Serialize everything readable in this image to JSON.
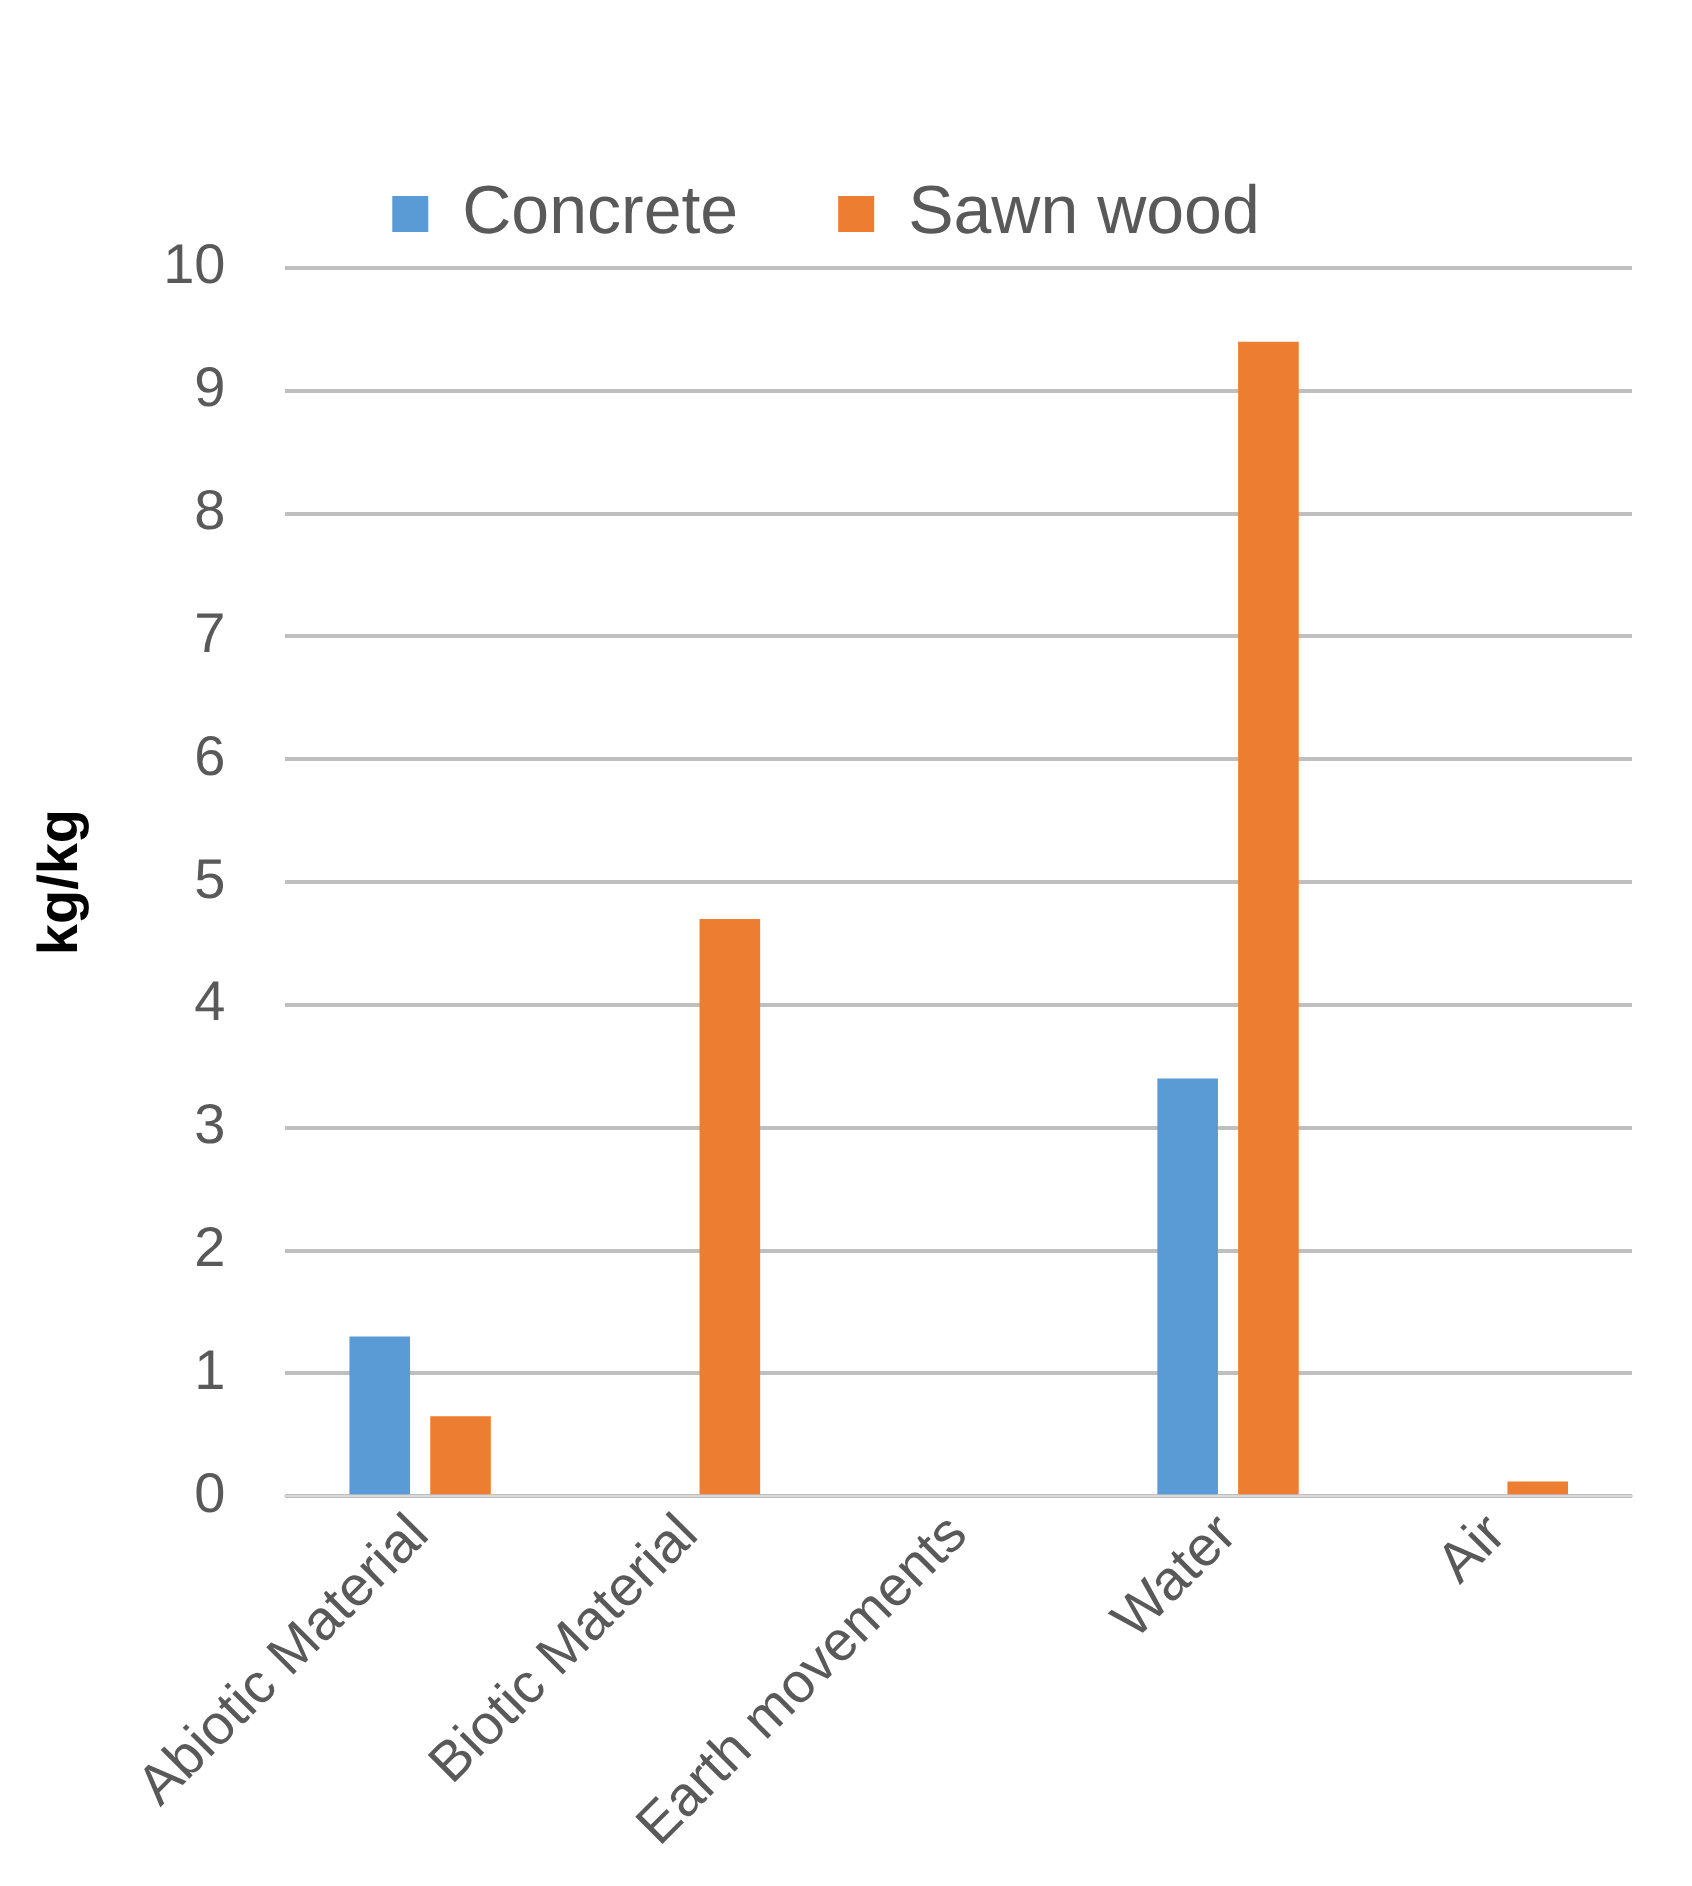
{
  "chart_data": {
    "type": "bar",
    "ylabel": "kg/kg",
    "categories": [
      "Abiotic Material",
      "Biotic Material",
      "Earth movements",
      "Water",
      "Air"
    ],
    "series": [
      {
        "name": "Concrete",
        "color": "#5b9bd5",
        "values": [
          1.3,
          0,
          0,
          3.4,
          0
        ]
      },
      {
        "name": "Sawn wood",
        "color": "#ed7d31",
        "values": [
          0.65,
          4.7,
          0,
          9.4,
          0.12
        ]
      }
    ],
    "ylim": [
      0,
      10
    ],
    "yticks": [
      0,
      1,
      2,
      3,
      4,
      5,
      6,
      7,
      8,
      9,
      10
    ],
    "grid": "y",
    "legend": "top"
  }
}
